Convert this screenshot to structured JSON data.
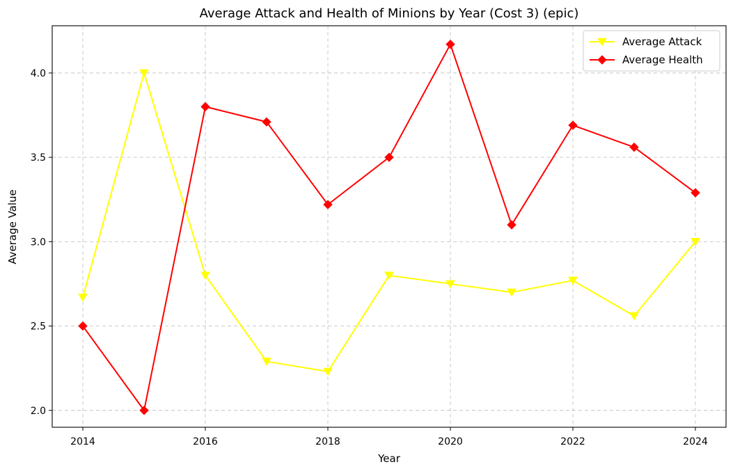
{
  "chart_data": {
    "type": "line",
    "title": "Average Attack and Health of Minions by Year (Cost 3) (epic)",
    "xlabel": "Year",
    "ylabel": "Average Value",
    "x": [
      2014,
      2015,
      2016,
      2017,
      2018,
      2019,
      2020,
      2021,
      2022,
      2023,
      2024
    ],
    "xlim": [
      2013.5,
      2024.5
    ],
    "ylim": [
      1.9,
      4.28
    ],
    "xticks": [
      2014,
      2016,
      2018,
      2020,
      2022,
      2024
    ],
    "xtick_labels": [
      "2014",
      "2016",
      "2018",
      "2020",
      "2022",
      "2024"
    ],
    "yticks": [
      2.0,
      2.5,
      3.0,
      3.5,
      4.0
    ],
    "ytick_labels": [
      "2.0",
      "2.5",
      "3.0",
      "3.5",
      "4.0"
    ],
    "grid": true,
    "legend_position": "top-right",
    "series": [
      {
        "name": "Average Attack",
        "color": "#ffff00",
        "marker": "triangle-down",
        "values": [
          2.67,
          4.0,
          2.8,
          2.29,
          2.23,
          2.8,
          2.75,
          2.7,
          2.77,
          2.56,
          3.0
        ]
      },
      {
        "name": "Average Health",
        "color": "#ff0000",
        "marker": "diamond",
        "values": [
          2.5,
          2.0,
          3.8,
          3.71,
          3.22,
          3.5,
          4.17,
          3.1,
          3.69,
          3.56,
          3.29
        ]
      }
    ]
  }
}
